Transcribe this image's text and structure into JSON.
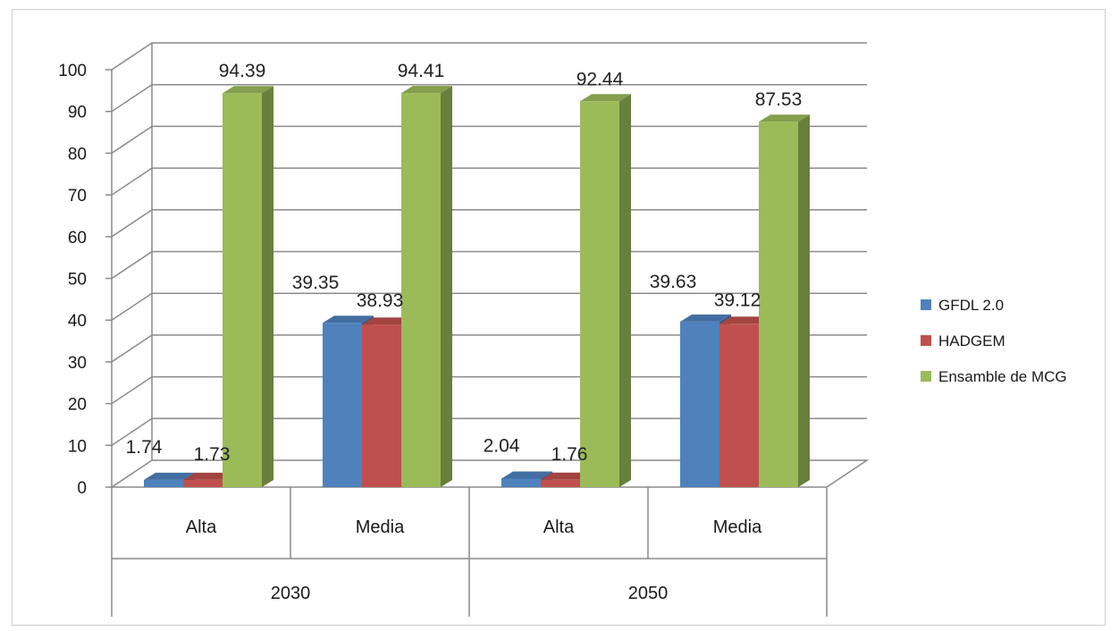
{
  "chart_data": {
    "type": "bar",
    "style": "3d-clustered-column",
    "categories": [
      "Alta",
      "Media",
      "Alta",
      "Media"
    ],
    "groups": [
      {
        "label": "2030",
        "categories": [
          "Alta",
          "Media"
        ]
      },
      {
        "label": "2050",
        "categories": [
          "Alta",
          "Media"
        ]
      }
    ],
    "series": [
      {
        "name": "GFDL 2.0",
        "color": "#4f81bd",
        "values": [
          1.74,
          39.35,
          2.04,
          39.63
        ]
      },
      {
        "name": "HADGEM",
        "color": "#c0504d",
        "values": [
          1.73,
          38.93,
          1.76,
          39.12
        ]
      },
      {
        "name": "Ensamble de MCG",
        "color": "#9bbb59",
        "values": [
          94.39,
          94.41,
          92.44,
          87.53
        ]
      }
    ],
    "data_labels": [
      [
        "1.74",
        "39.35",
        "2.04",
        "39.63"
      ],
      [
        "1.73",
        "38.93",
        "1.76",
        "39.12"
      ],
      [
        "94.39",
        "94.41",
        "92.44",
        "87.53"
      ]
    ],
    "yticks": [
      "0",
      "10",
      "20",
      "30",
      "40",
      "50",
      "60",
      "70",
      "80",
      "90",
      "100"
    ],
    "ylim": [
      0,
      100
    ],
    "title": "",
    "xlabel": "",
    "ylabel": "",
    "grid": true,
    "legend": "right"
  }
}
